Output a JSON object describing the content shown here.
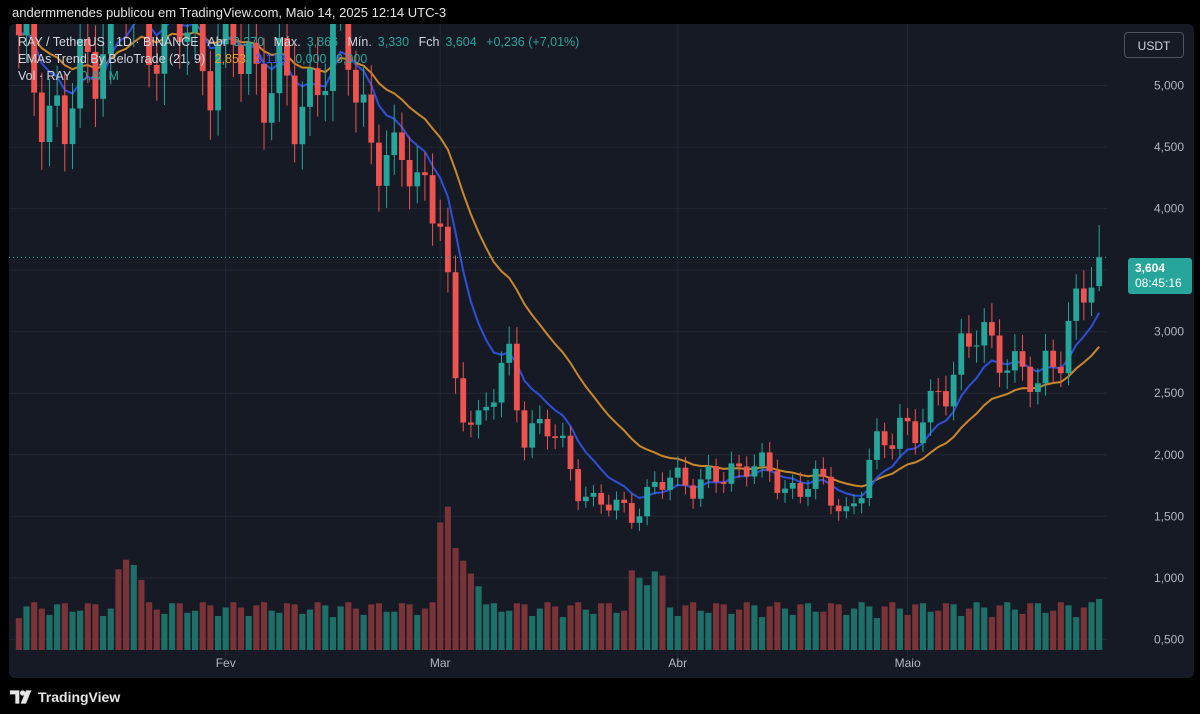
{
  "header": {
    "publisher": "andermmendes publicou em TradingView.com, Maio 14, 2025 12:14 UTC-3"
  },
  "legend": {
    "symbol": "RAY / TetherUS · 1D · BINANCE",
    "open_label": "Abr",
    "open": "3,370",
    "high_label": "Máx.",
    "high": "3,866",
    "low_label": "Mín.",
    "low": "3,330",
    "close_label": "Fch",
    "close": "3,604",
    "change": "+0,236 (+7,01%)",
    "ema_label": "EMAs Trend By BeloTrade (21, 9)",
    "ema21": "2,853",
    "ema9": "3,113",
    "ema_extra": "0,000",
    "ema_extra2": "0,000",
    "vol_label": "Vol · RAY",
    "vol_value": "0,48 M"
  },
  "currency_button": "USDT",
  "price_tag": {
    "price": "3,604",
    "countdown": "08:45:16"
  },
  "footer": {
    "brand": "TradingView"
  },
  "colors": {
    "up": "#26a69a",
    "down": "#ef5350",
    "vol_up": "#1f6f69",
    "vol_down": "#7a3336",
    "ema_fast": "#2f4fd8",
    "ema_slow": "#c9882a",
    "grid": "#232735",
    "axis_text": "#b2b5be"
  },
  "chart_data": {
    "type": "candlestick",
    "title": "RAY / TetherUS · 1D · BINANCE",
    "y_ticks": [
      0.5,
      1.0,
      1.5,
      2.0,
      2.5,
      3.0,
      3.5,
      4.0,
      4.5,
      5.0
    ],
    "y_tick_labels": [
      "0,500",
      "1,000",
      "1,500",
      "2,000",
      "2,500",
      "3,000",
      "",
      "4,000",
      "4,500",
      "5,000"
    ],
    "ylim": [
      0.3,
      5.5
    ],
    "x_labels": [
      {
        "index": 27,
        "label": "Fev"
      },
      {
        "index": 55,
        "label": "Mar"
      },
      {
        "index": 86,
        "label": "Abr"
      },
      {
        "index": 116,
        "label": "Maio"
      }
    ],
    "last_price": 3.604,
    "volume_axis_max": 1.6,
    "ohlc": [],
    "volume": [],
    "ema9": [],
    "ema21": []
  }
}
